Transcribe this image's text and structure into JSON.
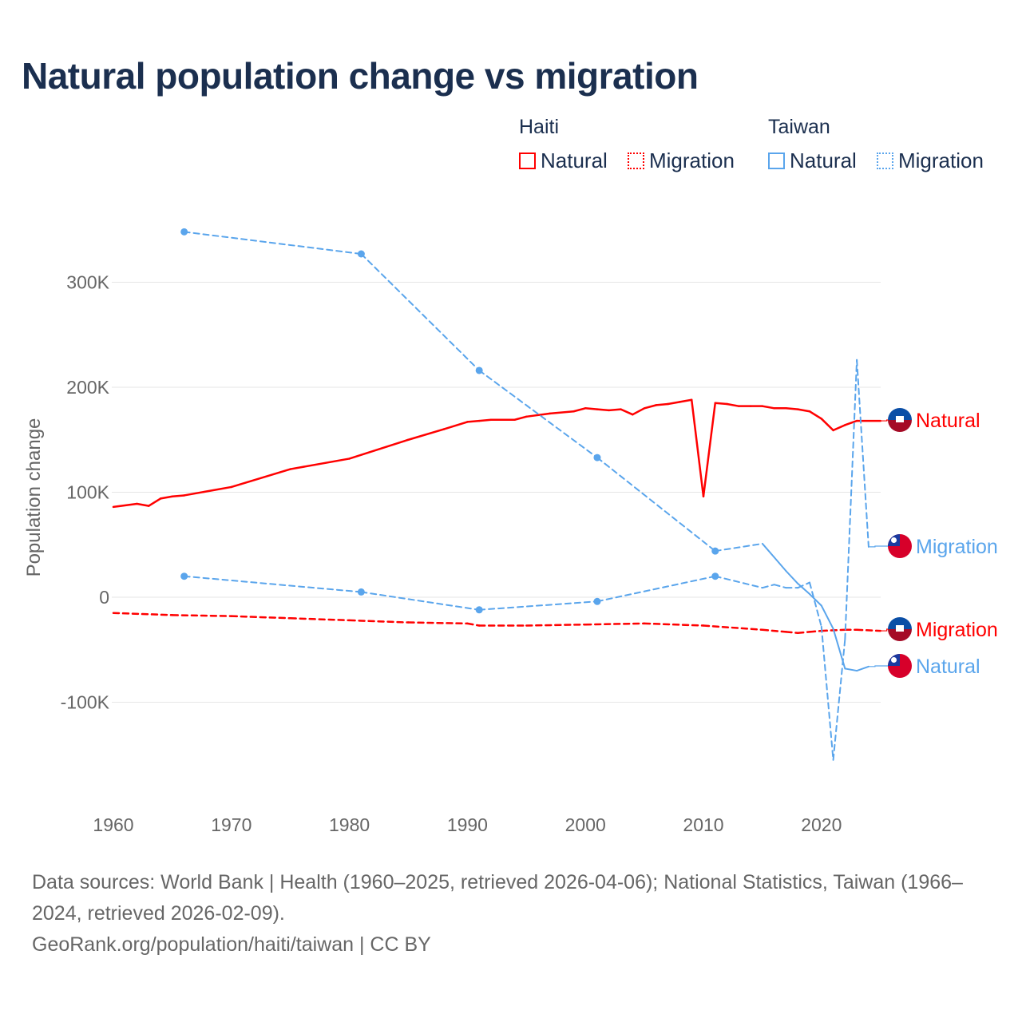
{
  "title": "Natural population change vs migration",
  "legend": {
    "groups": [
      {
        "name": "Haiti",
        "color": "#ff0000",
        "items": [
          "Natural",
          "Migration"
        ]
      },
      {
        "name": "Taiwan",
        "color": "#5aa5ec",
        "items": [
          "Natural",
          "Migration"
        ]
      }
    ]
  },
  "footer": {
    "line1": "Data sources: World Bank | Health (1960–2025, retrieved 2026-04-06); National Statistics, Taiwan (1966–",
    "line2": "2024, retrieved 2026-02-09).",
    "line3": "GeoRank.org/population/haiti/taiwan | CC BY"
  },
  "chart_data": {
    "type": "line",
    "title": "Natural population change vs migration",
    "ylabel": "Population change",
    "xlabel": "",
    "xlim": [
      1960,
      2025
    ],
    "ylim": [
      -170000,
      370000
    ],
    "xticks": [
      1960,
      1970,
      1980,
      1990,
      2000,
      2010,
      2020
    ],
    "yticks": [
      {
        "v": -100000,
        "label": "-100K"
      },
      {
        "v": 0,
        "label": "0"
      },
      {
        "v": 100000,
        "label": "100K"
      },
      {
        "v": 200000,
        "label": "200K"
      },
      {
        "v": 300000,
        "label": "300K"
      }
    ],
    "grid": true,
    "legend_position": "top-right",
    "series": [
      {
        "name": "Haiti Natural",
        "label": "Natural",
        "country": "Haiti",
        "color": "#ff0000",
        "dash": false,
        "x": [
          1960,
          1962,
          1963,
          1964,
          1965,
          1966,
          1970,
          1975,
          1980,
          1985,
          1988,
          1990,
          1991,
          1992,
          1994,
          1995,
          1997,
          1999,
          2000,
          2001,
          2002,
          2003,
          2004,
          2005,
          2006,
          2007,
          2008,
          2009,
          2010,
          2011,
          2012,
          2013,
          2014,
          2015,
          2016,
          2017,
          2018,
          2019,
          2020,
          2021,
          2022,
          2023,
          2025
        ],
        "y": [
          86000,
          89000,
          87000,
          94000,
          96000,
          97000,
          105000,
          122000,
          132000,
          150000,
          160000,
          167000,
          168000,
          169000,
          169000,
          172000,
          175000,
          177000,
          180000,
          179000,
          178000,
          179000,
          174000,
          180000,
          183000,
          184000,
          186000,
          188000,
          96000,
          185000,
          184000,
          182000,
          182000,
          182000,
          180000,
          180000,
          179000,
          177000,
          170000,
          159000,
          164000,
          168000,
          168000
        ]
      },
      {
        "name": "Haiti Migration",
        "label": "Migration",
        "country": "Haiti",
        "color": "#ff0000",
        "dash": true,
        "x": [
          1960,
          1965,
          1970,
          1975,
          1980,
          1985,
          1990,
          1991,
          1995,
          2000,
          2005,
          2010,
          2015,
          2017,
          2018,
          2019,
          2020,
          2022,
          2023,
          2025
        ],
        "y": [
          -15000,
          -17000,
          -18000,
          -20000,
          -22000,
          -24000,
          -25000,
          -27000,
          -27000,
          -26000,
          -25000,
          -27000,
          -31000,
          -33000,
          -34000,
          -33000,
          -32000,
          -31000,
          -31000,
          -32000
        ]
      },
      {
        "name": "Taiwan Natural",
        "label": "Natural",
        "country": "Taiwan",
        "color": "#5aa5ec",
        "dash": false,
        "x": [
          1966,
          1981,
          1991,
          2001,
          2011,
          2015,
          2016,
          2017,
          2018,
          2019,
          2020,
          2021,
          2022,
          2023,
          2024
        ],
        "y": [
          348000,
          327000,
          216000,
          133000,
          44000,
          51000,
          38000,
          25000,
          13000,
          3000,
          -8000,
          -30000,
          -68000,
          -70000,
          -66000
        ]
      },
      {
        "name": "Taiwan Migration",
        "label": "Migration",
        "country": "Taiwan",
        "color": "#5aa5ec",
        "dash": true,
        "x": [
          1966,
          1981,
          1991,
          2001,
          2011,
          2015,
          2016,
          2017,
          2018,
          2019,
          2020,
          2021,
          2022,
          2023,
          2024
        ],
        "y": [
          20000,
          5000,
          -12000,
          -4000,
          20000,
          9000,
          12000,
          9000,
          9000,
          14000,
          -28000,
          -155000,
          -40000,
          226000,
          48000
        ]
      }
    ]
  }
}
